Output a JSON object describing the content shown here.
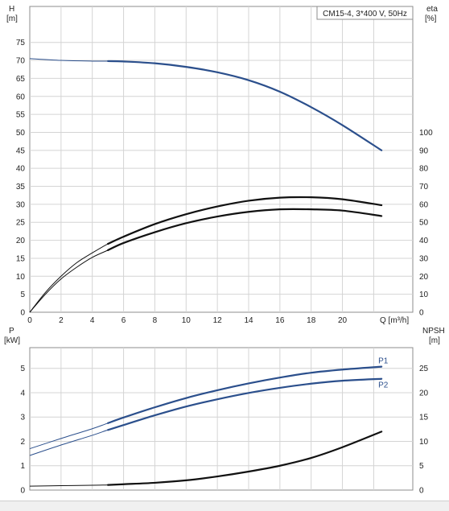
{
  "colors": {
    "blue": "#2b4f8c",
    "black": "#111111",
    "grid": "#d4d4d4",
    "frame": "#8c8c8c"
  },
  "chart_data": [
    {
      "type": "line",
      "title": "CM15-4, 3*400 V, 50Hz",
      "ylabel": "H",
      "ylabel_unit": "[m]",
      "y2label": "eta",
      "y2label_unit": "[%]",
      "xlabel": "Q [m³/h]",
      "xlim": [
        0,
        24.5
      ],
      "ylim": [
        0,
        85
      ],
      "y2_max": 100,
      "xticks": [
        "0",
        "2",
        "4",
        "6",
        "8",
        "10",
        "12",
        "14",
        "16",
        "18",
        "20"
      ],
      "yticks": [
        "0",
        "5",
        "10",
        "15",
        "20",
        "25",
        "30",
        "35",
        "40",
        "45",
        "50",
        "55",
        "60",
        "65",
        "70",
        "75"
      ],
      "y2ticks": [
        "0",
        "10",
        "20",
        "30",
        "40",
        "50",
        "60",
        "70",
        "80",
        "90",
        "100"
      ],
      "grid": true,
      "series": [
        {
          "key": "H",
          "axis": "y",
          "color": "#2b4f8c",
          "x": [
            0,
            2,
            4,
            5,
            6,
            8,
            10,
            12,
            14,
            16,
            18,
            20,
            22.5
          ],
          "y": [
            70.5,
            70.0,
            69.8,
            69.8,
            69.7,
            69.2,
            68.2,
            66.7,
            64.5,
            61.3,
            57.0,
            52.0,
            45.0
          ],
          "bold_from_x": 5,
          "bold_to_x": 22.5
        },
        {
          "key": "eta-outer",
          "axis": "y2",
          "color": "#111111",
          "x": [
            0,
            1,
            2,
            3,
            4,
            5,
            6,
            8,
            10,
            12,
            14,
            16,
            18,
            20,
            22.5
          ],
          "y": [
            0,
            11,
            20,
            27.5,
            33,
            38,
            42,
            49,
            54.5,
            58.8,
            62,
            63.7,
            63.9,
            62.8,
            59.5
          ],
          "bold_from_x": 5,
          "bold_to_x": 22.5
        },
        {
          "key": "eta-inner",
          "axis": "y2",
          "color": "#111111",
          "x": [
            0,
            1,
            2,
            3,
            4,
            5,
            6,
            8,
            10,
            12,
            14,
            16,
            18,
            20,
            22.5
          ],
          "y": [
            0,
            10,
            18.5,
            25,
            30.5,
            34.5,
            38.5,
            44.5,
            49.5,
            53.2,
            55.8,
            57.2,
            57.2,
            56.5,
            53.5
          ],
          "bold_from_x": 5,
          "bold_to_x": 22.5
        }
      ]
    },
    {
      "type": "line",
      "ylabel": "P",
      "ylabel_unit": "[kW]",
      "y2label": "NPSH",
      "y2label_unit": "[m]",
      "xlim": [
        0,
        24.5
      ],
      "ylim": [
        0,
        5.85
      ],
      "y2_max": 29.25,
      "yticks": [
        "0",
        "1",
        "2",
        "3",
        "4",
        "5"
      ],
      "y2ticks": [
        "0",
        "5",
        "10",
        "15",
        "20",
        "25"
      ],
      "grid": true,
      "series": [
        {
          "key": "P1",
          "name": "P1",
          "axis": "y",
          "color": "#2b4f8c",
          "x": [
            0,
            2,
            4,
            5,
            6,
            8,
            10,
            12,
            14,
            16,
            18,
            20,
            22.5
          ],
          "y": [
            1.7,
            2.12,
            2.52,
            2.75,
            2.98,
            3.4,
            3.78,
            4.1,
            4.38,
            4.62,
            4.82,
            4.95,
            5.07
          ],
          "bold_from_x": 5,
          "bold_to_x": 22.5
        },
        {
          "key": "P2",
          "name": "P2",
          "axis": "y",
          "color": "#2b4f8c",
          "x": [
            0,
            2,
            4,
            5,
            6,
            8,
            10,
            12,
            14,
            16,
            18,
            20,
            22.5
          ],
          "y": [
            1.42,
            1.85,
            2.25,
            2.47,
            2.67,
            3.07,
            3.43,
            3.73,
            3.99,
            4.2,
            4.37,
            4.49,
            4.57
          ],
          "bold_from_x": 5,
          "bold_to_x": 22.5
        },
        {
          "key": "NPSH",
          "axis": "y2",
          "color": "#111111",
          "x": [
            0,
            2,
            4,
            5,
            6,
            8,
            10,
            12,
            14,
            16,
            18,
            20,
            22.5
          ],
          "y": [
            0.8,
            0.9,
            1.0,
            1.05,
            1.2,
            1.5,
            2.0,
            2.8,
            3.8,
            5.0,
            6.6,
            8.8,
            12.0
          ],
          "bold_from_x": 5,
          "bold_to_x": 22.5
        }
      ]
    }
  ]
}
